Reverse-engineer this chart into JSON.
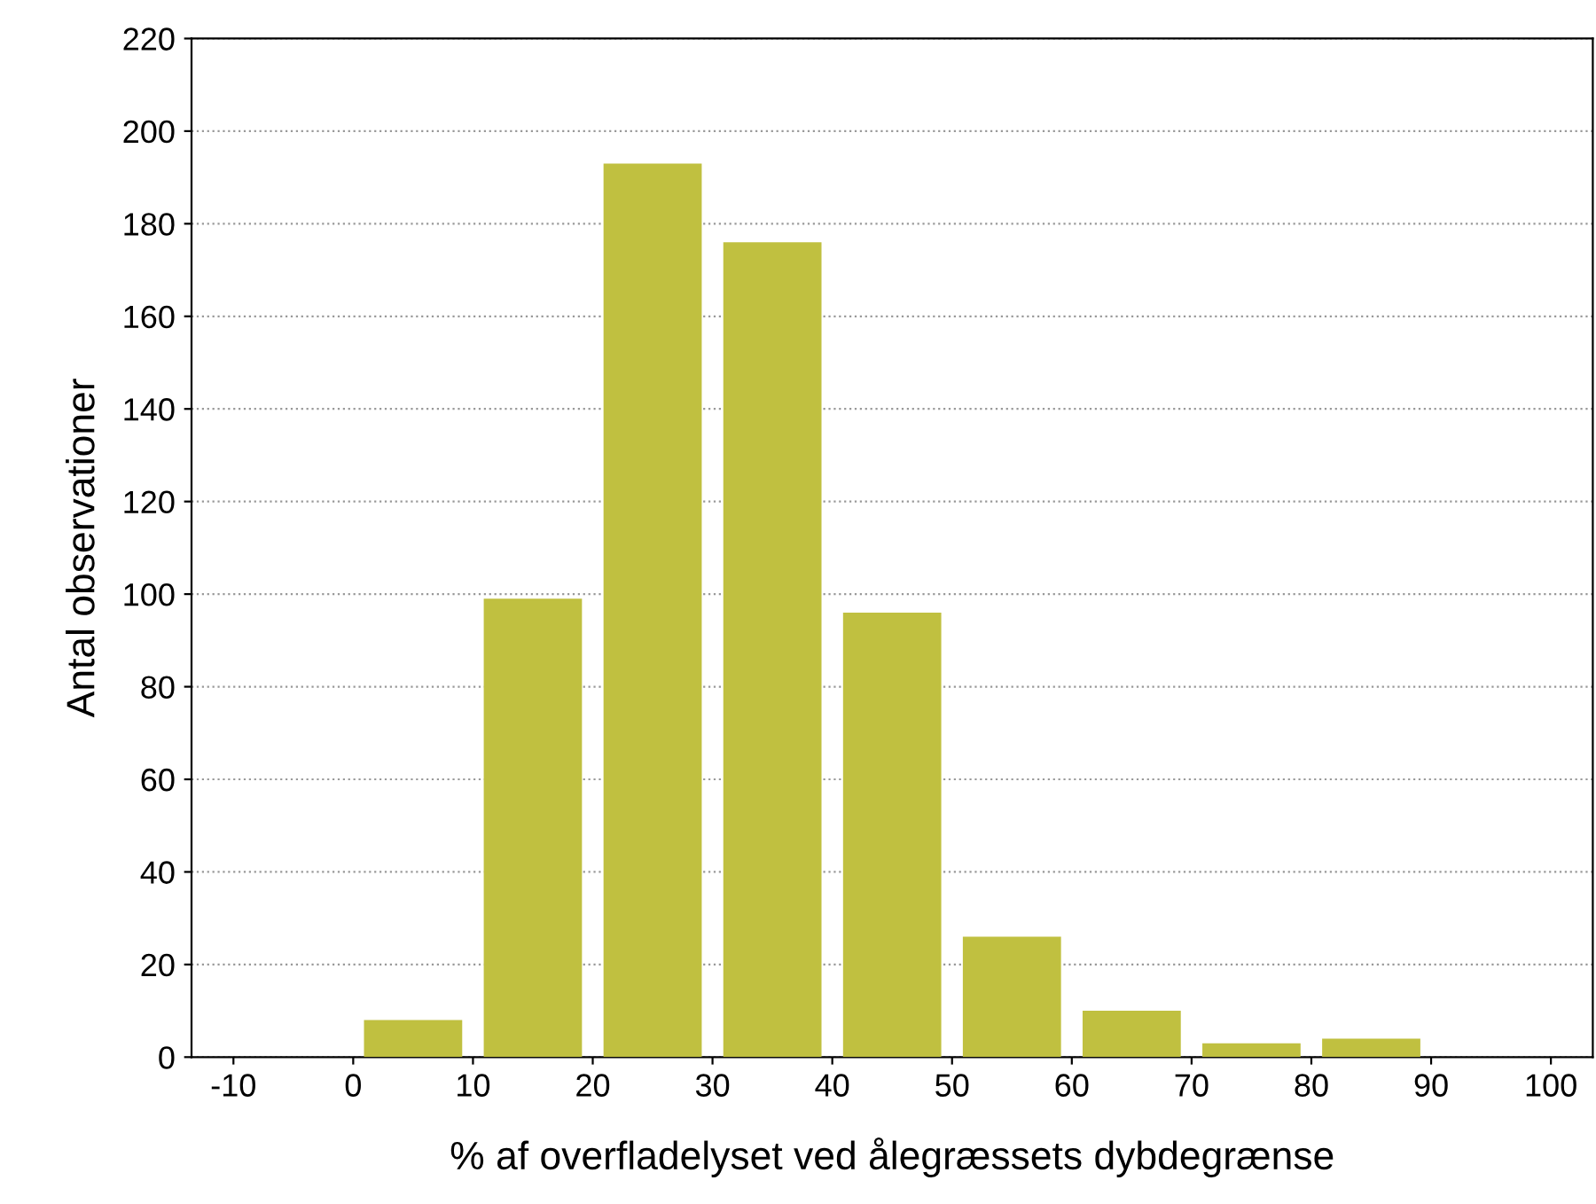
{
  "chart_data": {
    "type": "histogram",
    "xlabel": "% af overfladelyset ved ålegræssets dybdegrænse",
    "ylabel": "Antal observationer",
    "bins": [
      -10,
      0,
      10,
      20,
      30,
      40,
      50,
      60,
      70,
      80,
      90,
      100
    ],
    "values": [
      0,
      8,
      99,
      193,
      176,
      96,
      26,
      10,
      3,
      4,
      0
    ],
    "color": "#c0c040",
    "xlim": [
      -13.5,
      103.5
    ],
    "xticks": [
      -10,
      0,
      10,
      20,
      30,
      40,
      50,
      60,
      70,
      80,
      90,
      100
    ],
    "ylim": [
      0,
      220
    ],
    "yticks": [
      0,
      20,
      40,
      60,
      80,
      100,
      120,
      140,
      160,
      180,
      200,
      220
    ],
    "grid": "y"
  }
}
